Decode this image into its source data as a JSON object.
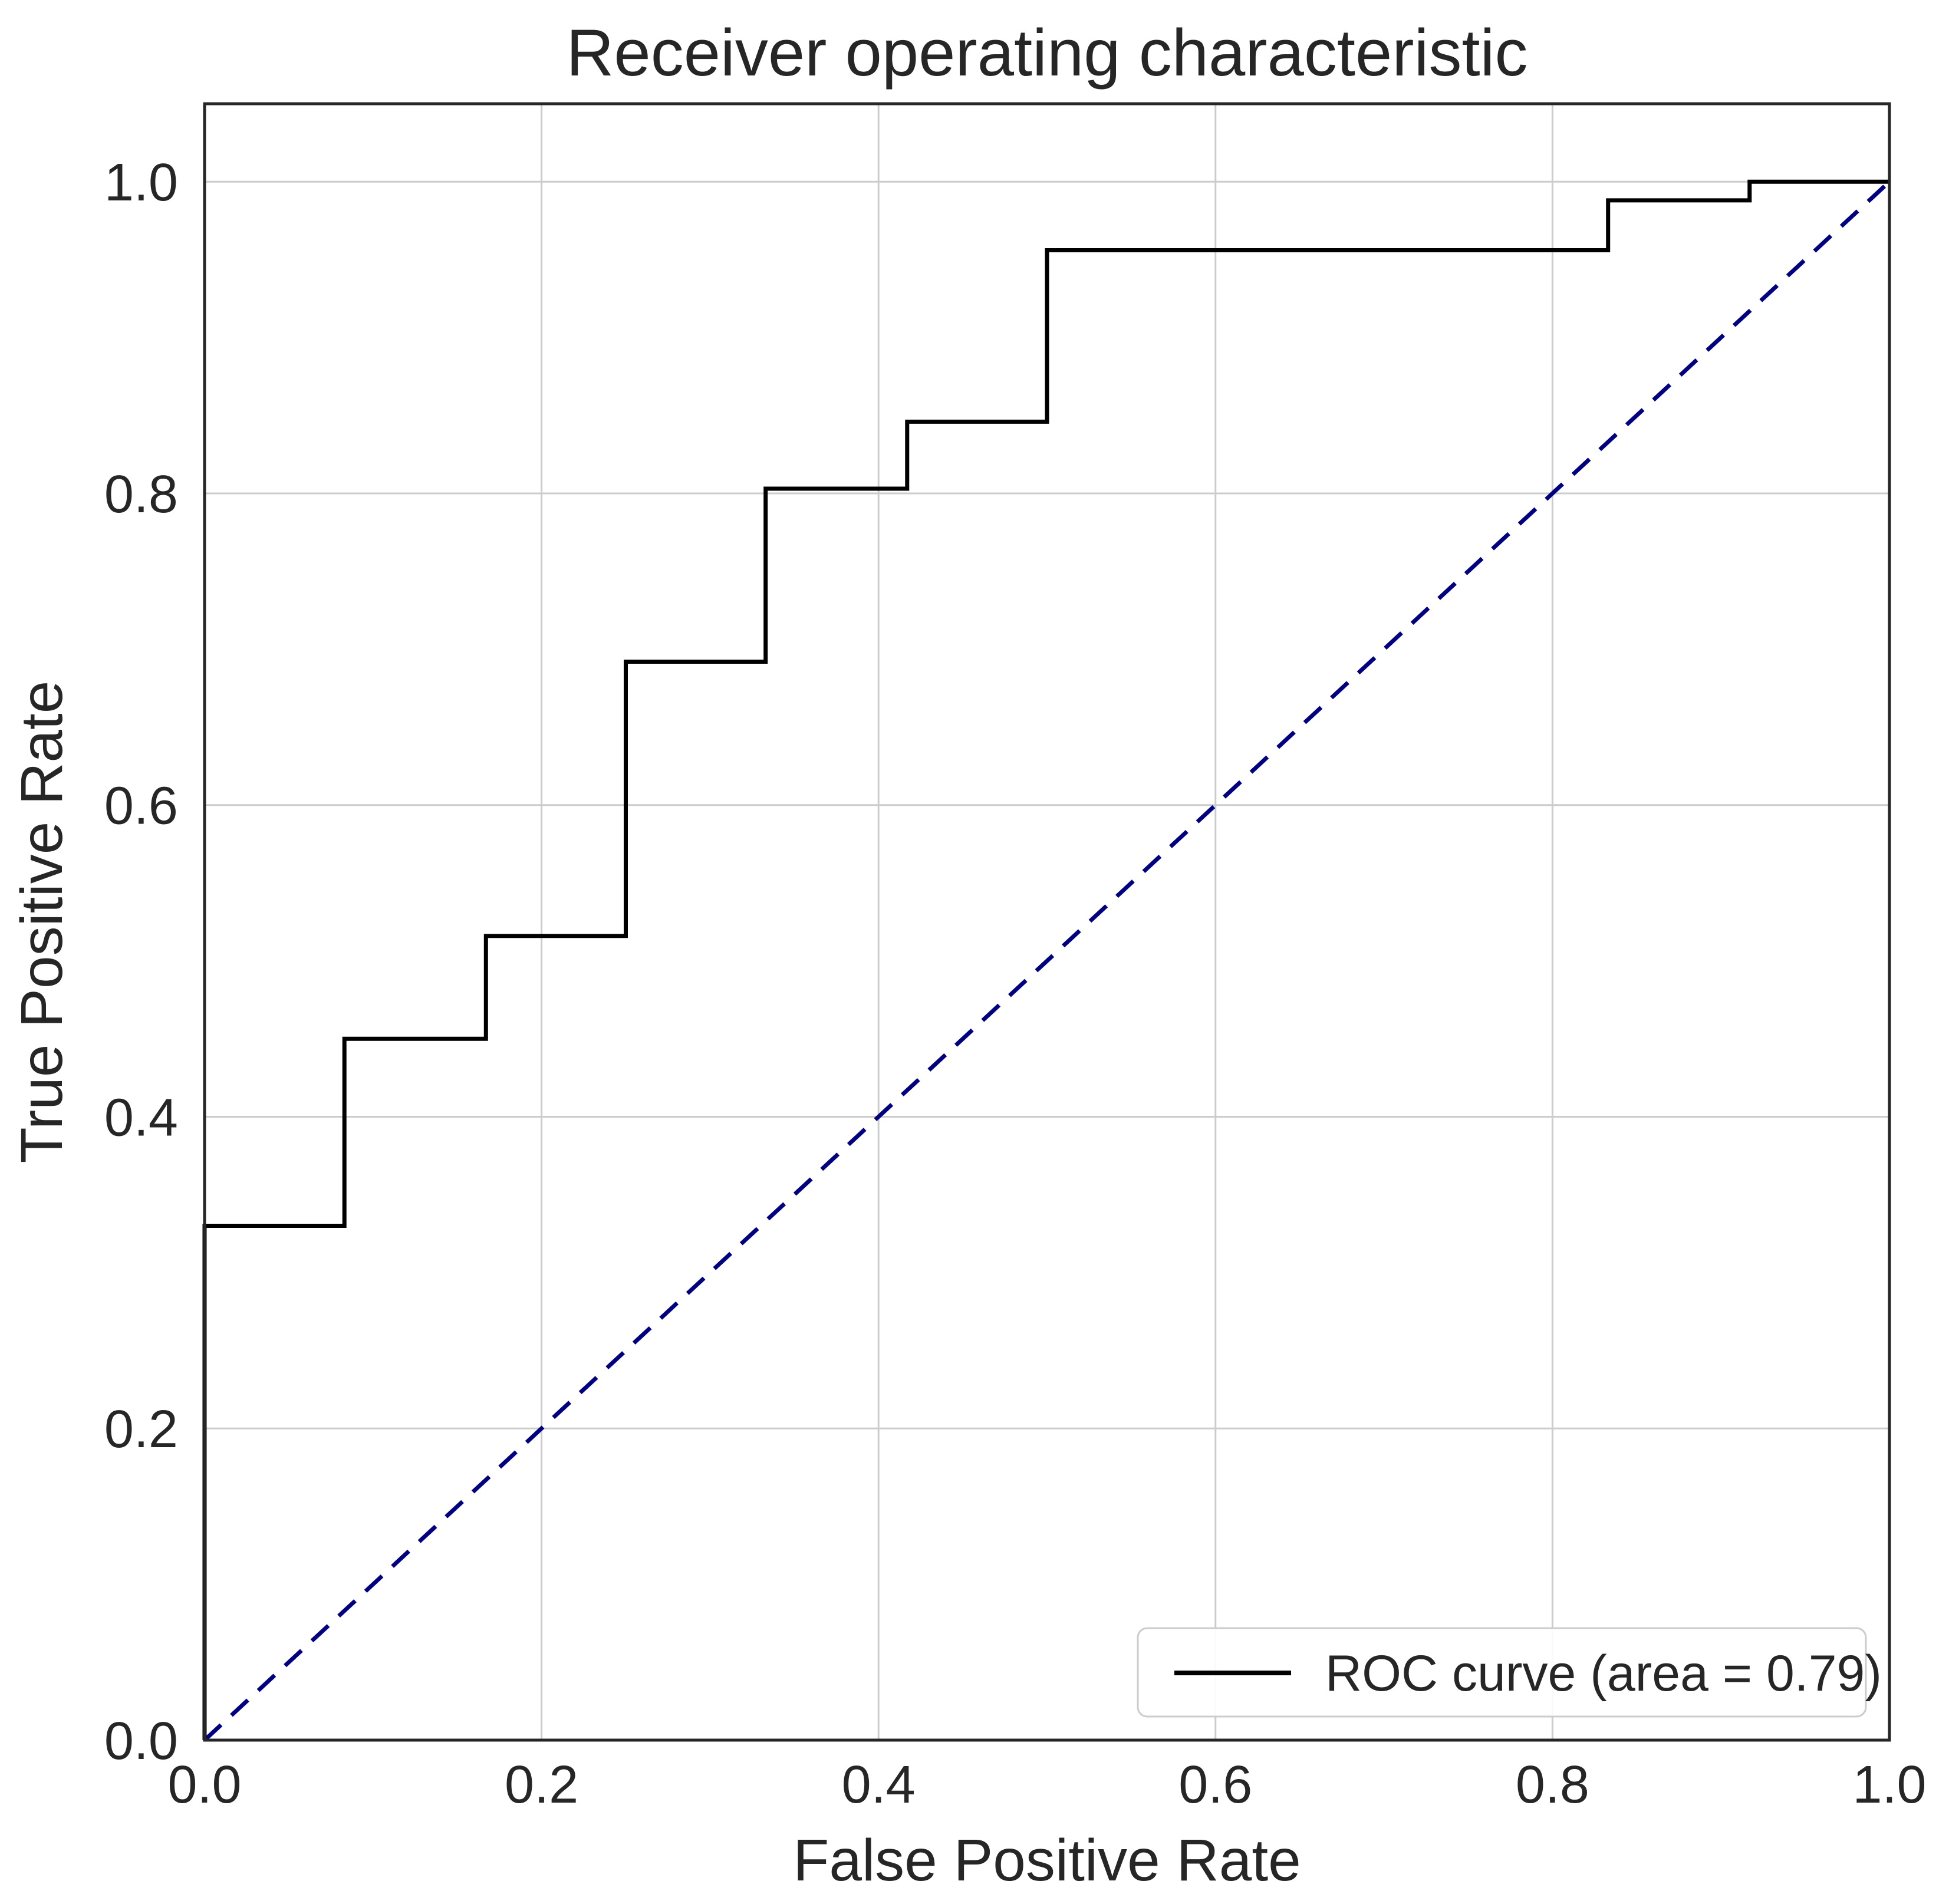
{
  "chart_data": {
    "type": "line",
    "title": "Receiver operating characteristic",
    "xlabel": "False Positive Rate",
    "ylabel": "True Positive Rate",
    "xlim": [
      0.0,
      1.0
    ],
    "ylim": [
      0.0,
      1.05
    ],
    "grid": true,
    "x_ticks": [
      {
        "v": 0.0,
        "label": "0.0"
      },
      {
        "v": 0.2,
        "label": "0.2"
      },
      {
        "v": 0.4,
        "label": "0.4"
      },
      {
        "v": 0.6,
        "label": "0.6"
      },
      {
        "v": 0.8,
        "label": "0.8"
      },
      {
        "v": 1.0,
        "label": "1.0"
      }
    ],
    "y_ticks": [
      {
        "v": 0.0,
        "label": "0.0"
      },
      {
        "v": 0.2,
        "label": "0.2"
      },
      {
        "v": 0.4,
        "label": "0.4"
      },
      {
        "v": 0.6,
        "label": "0.6"
      },
      {
        "v": 0.8,
        "label": "0.8"
      },
      {
        "v": 1.0,
        "label": "1.0"
      }
    ],
    "legend": {
      "location": "lower right",
      "entries": [
        {
          "label": "ROC curve (area = 0.79)",
          "color": "#000000",
          "line_style": "solid"
        }
      ]
    },
    "series": [
      {
        "name": "ROC curve (area = 0.79)",
        "color": "#000000",
        "line_style": "solid",
        "line_width": 7,
        "points": [
          [
            0.0,
            0.0
          ],
          [
            0.0,
            0.33
          ],
          [
            0.083,
            0.33
          ],
          [
            0.083,
            0.45
          ],
          [
            0.167,
            0.45
          ],
          [
            0.167,
            0.516
          ],
          [
            0.25,
            0.516
          ],
          [
            0.25,
            0.692
          ],
          [
            0.333,
            0.692
          ],
          [
            0.333,
            0.803
          ],
          [
            0.417,
            0.803
          ],
          [
            0.417,
            0.846
          ],
          [
            0.5,
            0.846
          ],
          [
            0.5,
            0.956
          ],
          [
            0.833,
            0.956
          ],
          [
            0.833,
            0.988
          ],
          [
            0.917,
            0.988
          ],
          [
            0.917,
            1.0
          ],
          [
            1.0,
            1.0
          ]
        ]
      },
      {
        "name": "chance-diagonal",
        "color": "#000080",
        "line_style": "dashed",
        "line_width": 7,
        "points": [
          [
            0.0,
            0.0
          ],
          [
            1.0,
            1.0
          ]
        ]
      }
    ],
    "auc": 0.79,
    "styles": {
      "grid_color": "#cccccc",
      "spine_color": "#262626",
      "text_color": "#262626",
      "background_color": "#ffffff",
      "roc_line_color": "#000000",
      "diagonal_color": "#000080"
    }
  }
}
